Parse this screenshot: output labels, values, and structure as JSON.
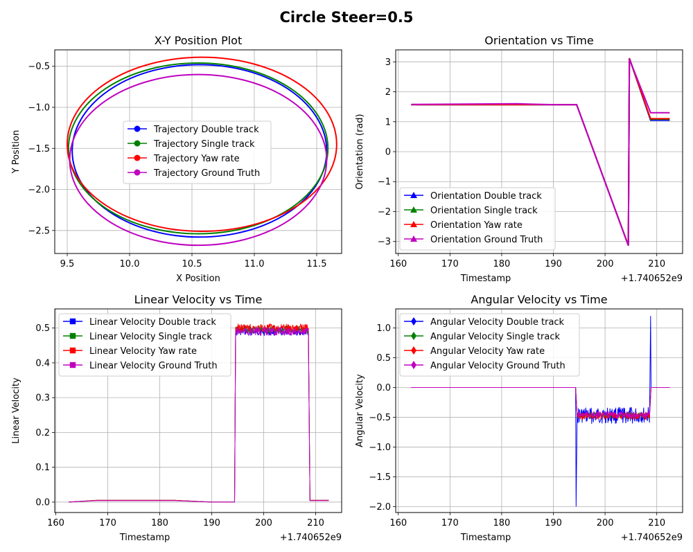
{
  "figure": {
    "suptitle": "Circle Steer=0.5"
  },
  "chart_data": [
    {
      "type": "line",
      "title": "X-Y Position Plot",
      "xlabel": "X Position",
      "ylabel": "Y Position",
      "xlim": [
        9.4,
        11.7
      ],
      "ylim": [
        -2.78,
        -0.3
      ],
      "xticks": [
        "9.5",
        "10.0",
        "10.5",
        "11.0",
        "11.5"
      ],
      "yticks": [
        "−2.5",
        "−2.0",
        "−1.5",
        "−1.0",
        "−0.5"
      ],
      "grid": true,
      "legend": "center",
      "marker": "circle",
      "series": [
        {
          "name": "Trajectory Double track",
          "color": "#0000ff",
          "cx": 10.56,
          "cy": -1.53,
          "rx": 1.02,
          "ry": 1.05
        },
        {
          "name": "Trajectory Single track",
          "color": "#008000",
          "cx": 10.55,
          "cy": -1.5,
          "rx": 1.04,
          "ry": 1.04
        },
        {
          "name": "Trajectory Yaw rate",
          "color": "#ff0000",
          "cx": 10.58,
          "cy": -1.45,
          "rx": 1.08,
          "ry": 1.06
        },
        {
          "name": "Trajectory Ground Truth",
          "color": "#bf00bf",
          "cx": 10.55,
          "cy": -1.64,
          "rx": 1.03,
          "ry": 1.04
        }
      ]
    },
    {
      "type": "line",
      "title": "Orientation vs Time",
      "xlabel": "Timestamp",
      "ylabel": "Orientation (rad)",
      "offset_text": "+1.740652e9",
      "xlim": [
        159.5,
        215
      ],
      "ylim": [
        -3.4,
        3.4
      ],
      "xticks": [
        "160",
        "170",
        "180",
        "190",
        "200",
        "210"
      ],
      "yticks": [
        "−3",
        "−2",
        "−1",
        "0",
        "1",
        "2",
        "3"
      ],
      "grid": true,
      "legend": "lower left",
      "marker": "triangle",
      "series": [
        {
          "name": "Orientation Double track",
          "color": "#0000ff",
          "x": [
            162.5,
            183,
            190,
            194.5,
            204.5,
            204.7,
            208.8,
            212.5
          ],
          "y": [
            1.57,
            1.57,
            1.57,
            1.57,
            -3.13,
            3.12,
            1.05,
            1.05
          ]
        },
        {
          "name": "Orientation Single track",
          "color": "#008000",
          "x": [
            162.5,
            183,
            190,
            194.5,
            204.5,
            204.7,
            208.8,
            212.5
          ],
          "y": [
            1.57,
            1.57,
            1.57,
            1.57,
            -3.13,
            3.12,
            1.08,
            1.08
          ]
        },
        {
          "name": "Orientation Yaw rate",
          "color": "#ff0000",
          "x": [
            162.5,
            183,
            190,
            194.5,
            204.5,
            204.7,
            208.8,
            212.5
          ],
          "y": [
            1.57,
            1.57,
            1.57,
            1.57,
            -3.13,
            3.12,
            1.1,
            1.1
          ]
        },
        {
          "name": "Orientation Ground Truth",
          "color": "#bf00bf",
          "x": [
            162.5,
            183,
            190,
            194.5,
            204.5,
            204.7,
            208.8,
            212.5
          ],
          "y": [
            1.58,
            1.6,
            1.57,
            1.57,
            -3.14,
            3.1,
            1.3,
            1.3
          ]
        }
      ]
    },
    {
      "type": "line",
      "title": "Linear Velocity vs Time",
      "xlabel": "Timestamp",
      "ylabel": "Linear Velocity",
      "offset_text": "+1.740652e9",
      "xlim": [
        159.8,
        215
      ],
      "ylim": [
        -0.03,
        0.555
      ],
      "xticks": [
        "160",
        "170",
        "180",
        "190",
        "200",
        "210"
      ],
      "yticks": [
        "0.0",
        "0.1",
        "0.2",
        "0.3",
        "0.4",
        "0.5"
      ],
      "grid": true,
      "legend": "upper left",
      "marker": "square",
      "series": [
        {
          "name": "Linear Velocity Double track",
          "color": "#0000ff",
          "x": [
            162.5,
            167.8,
            183,
            190,
            194.4,
            194.6,
            208.6,
            208.9,
            212.5
          ],
          "y": [
            0.0,
            0.005,
            0.005,
            0.0,
            0.0,
            0.49,
            0.49,
            0.005,
            0.005
          ]
        },
        {
          "name": "Linear Velocity Single track",
          "color": "#008000",
          "x": [
            162.5,
            167.8,
            183,
            190,
            194.4,
            194.6,
            208.6,
            208.9,
            212.5
          ],
          "y": [
            0.0,
            0.005,
            0.005,
            0.0,
            0.0,
            0.495,
            0.495,
            0.005,
            0.005
          ]
        },
        {
          "name": "Linear Velocity Yaw rate",
          "color": "#ff0000",
          "x": [
            162.5,
            167.8,
            183,
            190,
            194.4,
            194.6,
            208.6,
            208.9,
            212.5
          ],
          "y": [
            0.0,
            0.005,
            0.005,
            0.0,
            0.0,
            0.5,
            0.5,
            0.005,
            0.005
          ]
        },
        {
          "name": "Linear Velocity Ground Truth",
          "color": "#bf00bf",
          "x": [
            162.5,
            167.8,
            183,
            190,
            194.4,
            194.6,
            208.6,
            208.9,
            212.5
          ],
          "y": [
            0.0,
            0.004,
            0.004,
            0.0,
            0.0,
            0.49,
            0.49,
            0.004,
            0.004
          ]
        }
      ]
    },
    {
      "type": "line",
      "title": "Angular Velocity vs Time",
      "xlabel": "Timestamp",
      "ylabel": "Angular Velocity",
      "offset_text": "+1.740652e9",
      "xlim": [
        159.5,
        215
      ],
      "ylim": [
        -2.1,
        1.32
      ],
      "xticks": [
        "160",
        "170",
        "180",
        "190",
        "200",
        "210"
      ],
      "yticks": [
        "−2.0",
        "−1.5",
        "−1.0",
        "−0.5",
        "0.0",
        "0.5",
        "1.0"
      ],
      "grid": true,
      "legend": "upper left",
      "marker": "diamond",
      "series": [
        {
          "name": "Angular Velocity Double track",
          "color": "#0000ff",
          "x": [
            162.5,
            183,
            190,
            194.3,
            194.4,
            194.6,
            208.6,
            208.8,
            208.9,
            212.5
          ],
          "y": [
            0.0,
            0.0,
            0.0,
            0.0,
            -2.0,
            -0.47,
            -0.47,
            1.2,
            0.0,
            0.0
          ]
        },
        {
          "name": "Angular Velocity Single track",
          "color": "#008000",
          "x": [
            162.5,
            183,
            190,
            194.3,
            194.6,
            208.6,
            208.9,
            212.5
          ],
          "y": [
            0.0,
            0.0,
            0.0,
            0.0,
            -0.47,
            -0.47,
            0.0,
            0.0
          ]
        },
        {
          "name": "Angular Velocity Yaw rate",
          "color": "#ff0000",
          "x": [
            162.5,
            183,
            190,
            194.3,
            194.6,
            208.6,
            208.9,
            212.5
          ],
          "y": [
            0.0,
            0.0,
            0.0,
            0.0,
            -0.48,
            -0.48,
            0.0,
            0.0
          ]
        },
        {
          "name": "Angular Velocity Ground Truth",
          "color": "#bf00bf",
          "x": [
            162.5,
            183,
            190,
            194.3,
            194.6,
            208.6,
            208.9,
            212.5
          ],
          "y": [
            0.0,
            0.0,
            0.0,
            0.0,
            -0.46,
            -0.46,
            0.0,
            0.0
          ]
        }
      ]
    }
  ]
}
